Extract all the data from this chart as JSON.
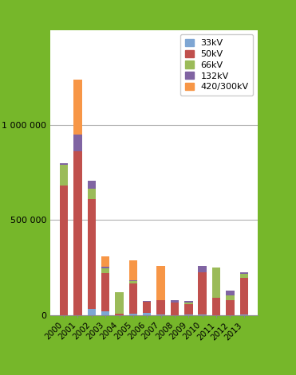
{
  "years": [
    "2000",
    "2001",
    "2002",
    "2003",
    "2004",
    "2005",
    "2006",
    "2007",
    "2008",
    "2009",
    "2010",
    "2011",
    "2012",
    "2013"
  ],
  "series": {
    "33kV": [
      0,
      0,
      30000,
      20000,
      0,
      5000,
      10000,
      2000,
      0,
      2000,
      3000,
      0,
      0,
      2000
    ],
    "50kV": [
      680000,
      860000,
      580000,
      200000,
      8000,
      160000,
      60000,
      75000,
      65000,
      55000,
      220000,
      90000,
      80000,
      195000
    ],
    "66kV": [
      110000,
      0,
      55000,
      25000,
      110000,
      12000,
      0,
      0,
      0,
      8000,
      0,
      160000,
      25000,
      18000
    ],
    "132kV": [
      8000,
      90000,
      40000,
      8000,
      0,
      4000,
      4000,
      0,
      12000,
      8000,
      35000,
      0,
      25000,
      8000
    ],
    "420/300kV": [
      0,
      290000,
      0,
      55000,
      0,
      105000,
      0,
      180000,
      0,
      0,
      0,
      0,
      0,
      0
    ]
  },
  "colors": {
    "33kV": "#7ea6d3",
    "50kV": "#c0504d",
    "66kV": "#9bbb59",
    "132kV": "#8064a2",
    "420/300kV": "#f79646"
  },
  "yticks": [
    0,
    500000,
    1000000
  ],
  "ytick_labels": [
    "0",
    "500 000",
    "1 000 000"
  ],
  "ymax": 1500000,
  "bg_color": "#76b72a",
  "plot_bg": "#ffffff",
  "grid_color": "#b0b0b0"
}
